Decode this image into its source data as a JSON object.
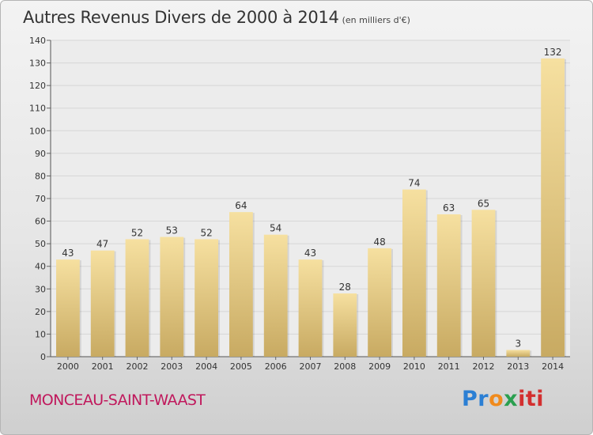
{
  "header": {
    "title": "Autres Revenus Divers de 2000 à 2014",
    "unit_note": "(en milliers d'€)"
  },
  "footer": {
    "town": "MONCEAU-SAINT-WAAST",
    "logo_parts": [
      "Pr",
      "o",
      "x",
      "iti"
    ]
  },
  "colors": {
    "bar_light": "#f6e0a0",
    "bar_dark": "#c8aa62",
    "town": "#c0185c"
  },
  "chart_data": {
    "type": "bar",
    "categories": [
      "2000",
      "2001",
      "2002",
      "2003",
      "2004",
      "2005",
      "2006",
      "2007",
      "2008",
      "2009",
      "2010",
      "2011",
      "2012",
      "2013",
      "2014"
    ],
    "values": [
      43,
      47,
      52,
      53,
      52,
      64,
      54,
      43,
      28,
      48,
      74,
      63,
      65,
      3,
      132
    ],
    "ylim": [
      0,
      140
    ],
    "yticks": [
      0,
      10,
      20,
      30,
      40,
      50,
      60,
      70,
      80,
      90,
      100,
      110,
      120,
      130,
      140
    ],
    "grid": true,
    "data_labels": true
  }
}
